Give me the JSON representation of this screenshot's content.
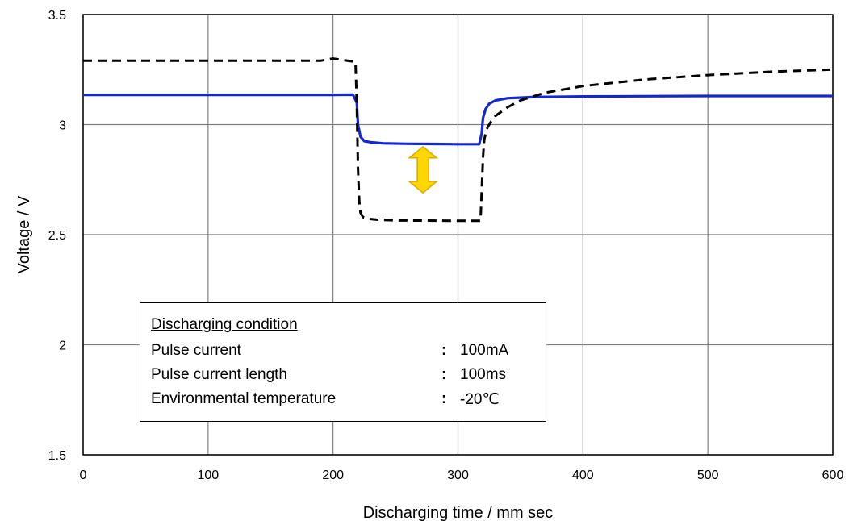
{
  "chart_data": {
    "type": "line",
    "title": "",
    "xlabel": "Discharging time / mm sec",
    "ylabel": "Voltage / V",
    "xlim": [
      0,
      600
    ],
    "ylim": [
      1.5,
      3.5
    ],
    "x_ticks": [
      0,
      100,
      200,
      300,
      400,
      500,
      600
    ],
    "x_tick_labels": [
      "0",
      "100",
      "200",
      "300",
      "400",
      "500",
      "600"
    ],
    "y_ticks": [
      1.5,
      2,
      2.5,
      3,
      3.5
    ],
    "y_tick_labels": [
      "1.5",
      "2",
      "2.5",
      "3",
      "3.5"
    ],
    "grid": true,
    "series": [
      {
        "style": "solid",
        "color": "#1428d2",
        "x": [
          0,
          100,
          200,
          216,
          219,
          220,
          222,
          225,
          230,
          240,
          260,
          280,
          300,
          317,
          319,
          320,
          322,
          325,
          330,
          340,
          360,
          400,
          500,
          600
        ],
        "y": [
          3.135,
          3.135,
          3.135,
          3.136,
          3.1,
          3.0,
          2.945,
          2.925,
          2.92,
          2.915,
          2.913,
          2.912,
          2.911,
          2.911,
          2.96,
          3.03,
          3.07,
          3.095,
          3.11,
          3.12,
          3.125,
          3.128,
          3.13,
          3.13
        ]
      },
      {
        "style": "dashed",
        "color": "#000000",
        "x": [
          0,
          100,
          190,
          200,
          218,
          219,
          220,
          221,
          222,
          224,
          228,
          235,
          250,
          300,
          318,
          319,
          320,
          321,
          323,
          326,
          330,
          340,
          350,
          370,
          400,
          450,
          500,
          550,
          600
        ],
        "y": [
          3.29,
          3.29,
          3.29,
          3.3,
          3.285,
          3.1,
          2.8,
          2.65,
          2.6,
          2.58,
          2.572,
          2.568,
          2.565,
          2.563,
          2.563,
          2.7,
          2.85,
          2.93,
          2.98,
          3.01,
          3.04,
          3.08,
          3.11,
          3.145,
          3.175,
          3.205,
          3.225,
          3.24,
          3.25
        ]
      }
    ],
    "annotation": {
      "type": "double-arrow",
      "color": "#ffd700",
      "x": 272,
      "y_from": 2.9,
      "y_to": 2.69
    }
  },
  "legend": {
    "title": "Discharging condition",
    "rows": [
      {
        "label": "Pulse current",
        "colon": ":",
        "value": "100mA"
      },
      {
        "label": "Pulse current length",
        "colon": ":",
        "value": "100ms"
      },
      {
        "label": "Environmental temperature",
        "colon": ":",
        "value": "-20℃"
      }
    ]
  }
}
